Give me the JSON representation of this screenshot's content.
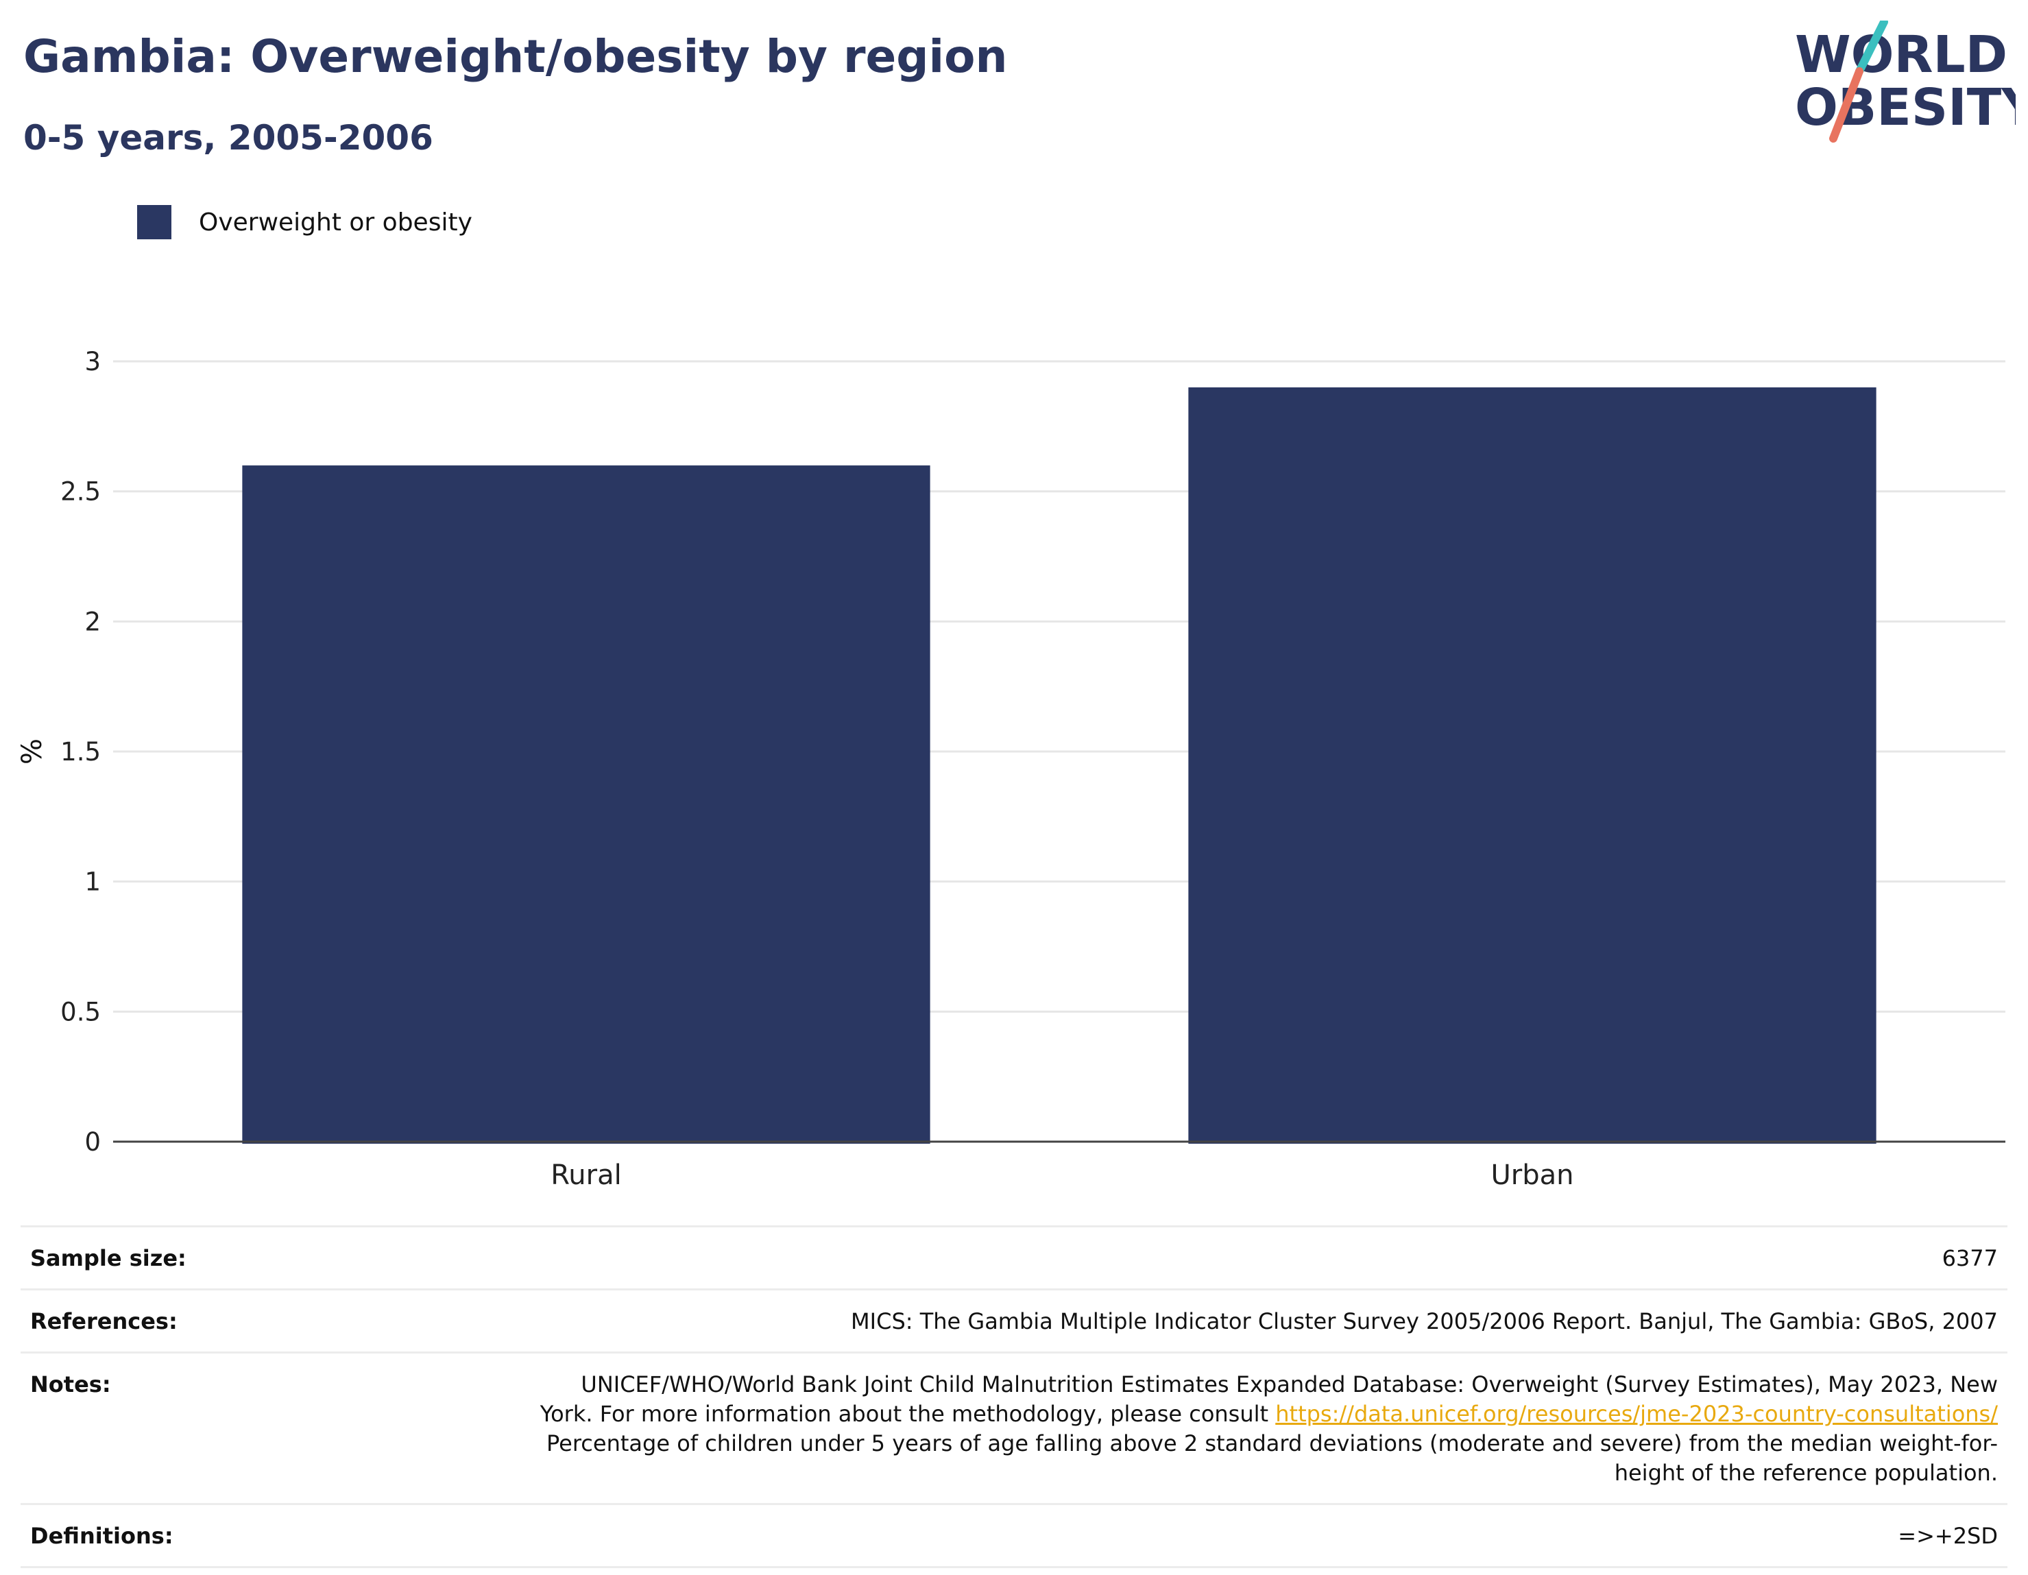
{
  "header": {
    "title": "Gambia: Overweight/obesity by region",
    "subtitle": "0-5 years, 2005-2006"
  },
  "logo": {
    "line1": "WORLD",
    "line2": "OBESITY",
    "colors": {
      "text": "#2b365f",
      "slash_top": "#3bbfbf",
      "slash_bottom": "#e8735f"
    }
  },
  "legend": {
    "entries": [
      {
        "label": "Overweight or obesity",
        "color": "#2a3762"
      }
    ],
    "placement": "top-left"
  },
  "chart_data": {
    "type": "bar",
    "categories": [
      "Rural",
      "Urban"
    ],
    "series": [
      {
        "name": "Overweight or obesity",
        "values": [
          2.6,
          2.9
        ],
        "color": "#2a3762"
      }
    ],
    "ylabel": "%",
    "xlabel": "",
    "ylim": [
      0,
      3
    ],
    "yticks": [
      "0",
      "0.5",
      "1",
      "1.5",
      "2",
      "2.5",
      "3"
    ],
    "grid": true
  },
  "info": {
    "sample_size": {
      "label": "Sample size:",
      "value": "6377"
    },
    "references": {
      "label": "References:",
      "value": "MICS: The Gambia Multiple Indicator Cluster Survey 2005/2006 Report. Banjul, The Gambia: GBoS, 2007"
    },
    "notes": {
      "label": "Notes:",
      "line1": "UNICEF/WHO/World Bank Joint Child Malnutrition Estimates Expanded Database: Overweight (Survey Estimates), May 2023, New",
      "line2_text": "York. For more information about the methodology, please consult ",
      "link": "https://data.unicef.org/resources/jme-2023-country-consultations/",
      "line3": "Percentage of children under 5 years of age falling above 2 standard deviations (moderate and severe) from the median weight-for-",
      "line4": "height of the reference population."
    },
    "definitions": {
      "label": "Definitions:",
      "value": "=>+2SD"
    }
  }
}
